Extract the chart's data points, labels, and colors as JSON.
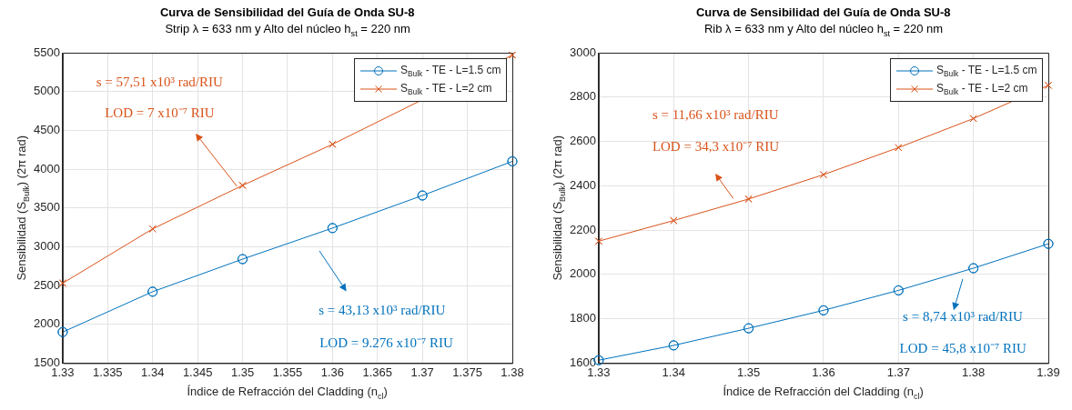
{
  "chart_data": [
    {
      "type": "line",
      "title": "Curva de Sensibilidad del Guía de Onda SU-8",
      "subtitle": "Strip λ = 633 nm  y  Alto del núcleo h$_{st}$ = 220 nm",
      "xlabel": "Índice de Refracción del Cladding (n$_{cl}$)",
      "ylabel": "Sensibilidad (S$_{Bulk}$) (2π rad)",
      "x": [
        1.33,
        1.34,
        1.35,
        1.36,
        1.37,
        1.38
      ],
      "series": [
        {
          "name": "S$_{Bulk}$ - TE - L=1.5 cm",
          "color": "#0072bd",
          "marker": "circle",
          "values": [
            1900,
            2420,
            2840,
            3240,
            3660,
            4100
          ]
        },
        {
          "name": "S$_{Bulk}$ - TE - L=2 cm",
          "color": "#d95319",
          "marker": "cross",
          "values": [
            2530,
            3230,
            3790,
            4320,
            null,
            5470
          ]
        }
      ],
      "xlim": [
        1.33,
        1.38
      ],
      "xticks": [
        1.33,
        1.335,
        1.34,
        1.345,
        1.35,
        1.355,
        1.36,
        1.365,
        1.37,
        1.375,
        1.38
      ],
      "ylim": [
        1500,
        5500
      ],
      "yticks": [
        1500,
        2000,
        2500,
        3000,
        3500,
        4000,
        4500,
        5000,
        5500
      ],
      "grid": true,
      "legend": "top right",
      "annotations": [
        "s = 57,51 x10³ rad/RIU",
        "LOD = 7 x10⁻⁷ RIU",
        "s = 43,13 x10³ rad/RIU",
        "LOD = 9.276 x10⁻⁷ RIU"
      ]
    },
    {
      "type": "line",
      "title": "Curva de Sensibilidad del Guía de Onda SU-8",
      "subtitle": "Rib λ = 633 nm  y  Alto del núcleo h$_{st}$ = 220 nm",
      "xlabel": "Índice de Refracción del Cladding (n$_{cl}$)",
      "ylabel": "Sensibilidad (S$_{Bulk}$) (2π rad)",
      "x": [
        1.33,
        1.34,
        1.35,
        1.36,
        1.37,
        1.38,
        1.39
      ],
      "series": [
        {
          "name": "S$_{Bulk}$ - TE - L=1.5 cm",
          "color": "#0072bd",
          "marker": "circle",
          "values": [
            1613,
            1680,
            1757,
            1838,
            1928,
            2028,
            2138
          ]
        },
        {
          "name": "S$_{Bulk}$ - TE - L=2 cm",
          "color": "#d95319",
          "marker": "cross",
          "values": [
            2150,
            2243,
            2340,
            2450,
            2572,
            2703,
            2853
          ]
        }
      ],
      "xlim": [
        1.33,
        1.39
      ],
      "xticks": [
        1.33,
        1.34,
        1.35,
        1.36,
        1.37,
        1.38,
        1.39
      ],
      "ylim": [
        1600,
        3000
      ],
      "yticks": [
        1600,
        1800,
        2000,
        2200,
        2400,
        2600,
        2800,
        3000
      ],
      "grid": true,
      "legend": "top right",
      "annotations": [
        "s = 11,66 x10³ rad/RIU",
        "LOD = 34,3 x10⁻⁷ RIU",
        "s = 8,74 x10³ rad/RIU",
        "LOD = 45,8 x10⁻⁷ RIU"
      ]
    }
  ]
}
